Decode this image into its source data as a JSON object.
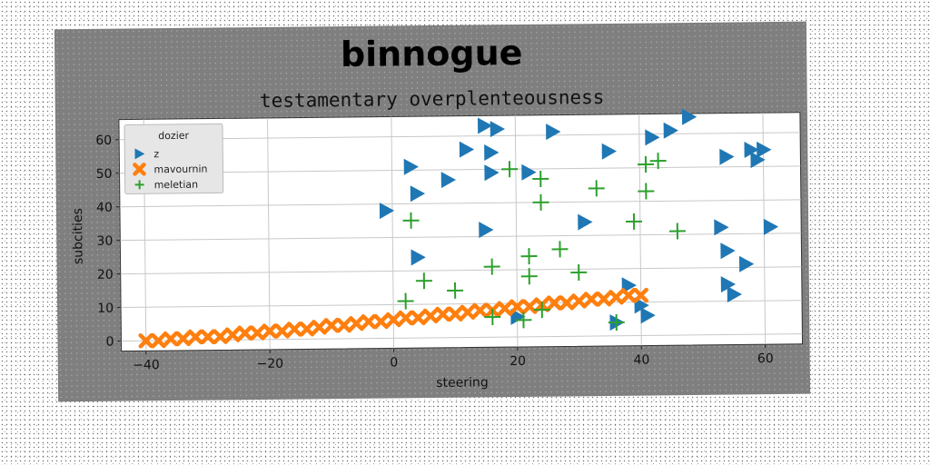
{
  "chart_data": {
    "type": "scatter",
    "title": "binnogue",
    "subtitle": "testamentary overplenteousness",
    "xlabel": "steering",
    "ylabel": "subcities",
    "xlim": [
      -44,
      66
    ],
    "ylim": [
      -3,
      66
    ],
    "x_ticks": [
      -40,
      -20,
      0,
      20,
      40,
      60
    ],
    "y_ticks": [
      0,
      10,
      20,
      30,
      40,
      50,
      60
    ],
    "grid": true,
    "legend_position": "top-left",
    "legend_title": "dozier",
    "series": [
      {
        "name": "z",
        "marker": "triangle-right",
        "color": "#1f77b4",
        "points": [
          [
            -1,
            38
          ],
          [
            3,
            51
          ],
          [
            4,
            43
          ],
          [
            4,
            24
          ],
          [
            9,
            47
          ],
          [
            12,
            56
          ],
          [
            15,
            63
          ],
          [
            16,
            55
          ],
          [
            16,
            49
          ],
          [
            17,
            62
          ],
          [
            15,
            32
          ],
          [
            20,
            6
          ],
          [
            22,
            49
          ],
          [
            26,
            61
          ],
          [
            31,
            34
          ],
          [
            35,
            55
          ],
          [
            36,
            4
          ],
          [
            38,
            15
          ],
          [
            40,
            9
          ],
          [
            41,
            6
          ],
          [
            42,
            59
          ],
          [
            45,
            61
          ],
          [
            48,
            65
          ],
          [
            53,
            32
          ],
          [
            54,
            53
          ],
          [
            54,
            15
          ],
          [
            54,
            25
          ],
          [
            55,
            12
          ],
          [
            57,
            21
          ],
          [
            58,
            55
          ],
          [
            59,
            52
          ],
          [
            60,
            55
          ],
          [
            61,
            32
          ]
        ]
      },
      {
        "name": "mavournin",
        "marker": "x",
        "color": "#ff7f0e",
        "points": [
          [
            -40,
            0
          ],
          [
            -38,
            0
          ],
          [
            -36,
            0.5
          ],
          [
            -34,
            0.5
          ],
          [
            -32,
            1
          ],
          [
            -30,
            1
          ],
          [
            -28,
            1
          ],
          [
            -26,
            1.5
          ],
          [
            -24,
            2
          ],
          [
            -22,
            2
          ],
          [
            -20,
            2.5
          ],
          [
            -18,
            2.5
          ],
          [
            -16,
            3
          ],
          [
            -14,
            3
          ],
          [
            -12,
            3.5
          ],
          [
            -10,
            4
          ],
          [
            -8,
            4
          ],
          [
            -6,
            4.5
          ],
          [
            -4,
            5
          ],
          [
            -2,
            5
          ],
          [
            0,
            5.5
          ],
          [
            2,
            6
          ],
          [
            4,
            6
          ],
          [
            6,
            6.5
          ],
          [
            8,
            7
          ],
          [
            10,
            7
          ],
          [
            12,
            7.5
          ],
          [
            14,
            8
          ],
          [
            16,
            8
          ],
          [
            18,
            8.5
          ],
          [
            20,
            9
          ],
          [
            22,
            9
          ],
          [
            24,
            9.5
          ],
          [
            26,
            10
          ],
          [
            28,
            10
          ],
          [
            30,
            10.5
          ],
          [
            32,
            11
          ],
          [
            34,
            11
          ],
          [
            36,
            11.5
          ],
          [
            38,
            12
          ],
          [
            40,
            12
          ]
        ]
      },
      {
        "name": "meletian",
        "marker": "plus",
        "color": "#2ca02c",
        "points": [
          [
            2,
            11
          ],
          [
            3,
            35
          ],
          [
            5,
            17
          ],
          [
            10,
            14
          ],
          [
            16,
            21
          ],
          [
            16,
            6
          ],
          [
            19,
            50
          ],
          [
            21,
            5
          ],
          [
            22,
            24
          ],
          [
            22,
            18
          ],
          [
            24,
            47
          ],
          [
            24,
            40
          ],
          [
            24,
            8
          ],
          [
            27,
            26
          ],
          [
            30,
            19
          ],
          [
            33,
            44
          ],
          [
            36,
            4
          ],
          [
            39,
            34
          ],
          [
            41,
            43
          ],
          [
            41,
            51
          ],
          [
            43,
            52
          ],
          [
            46,
            31
          ]
        ]
      }
    ]
  }
}
